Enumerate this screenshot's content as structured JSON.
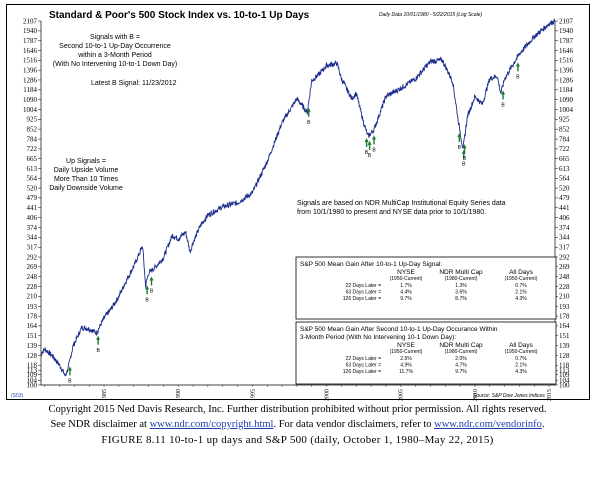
{
  "title": "Standard & Poor's 500 Stock Index vs. 10-to-1 Up Days",
  "subtitle": "Daily Data 10/01/1980 - 5/22/2015 (Log Scale)",
  "annotation_b": "Signals with B =\nSecond 10-to-1 Up-Day Occurrence\nwithin a 3-Month Period\n(With No Intervening 10-to-1 Down Day)",
  "latest_signal": "Latest B Signal: 11/23/2012",
  "annotation_up": "Up Signals =\nDaily Upside Volume\nMore Than 10 Times\nDaily Downside Volume",
  "annotation_ndr": "Signals are based on NDR MultiCap Institutional Equity Series data\nfrom 10/1/1980 to present and NYSE data prior to 10/1/1980.",
  "chart_id": "(S53)",
  "source": "Source: S&P Dow Jones Indices",
  "chart_data": {
    "type": "line",
    "title": "Standard & Poor's 500 Stock Index vs. 10-to-1 Up Days",
    "y_scale": "log",
    "yticks": [
      100,
      104,
      109,
      113,
      118,
      128,
      139,
      151,
      164,
      178,
      193,
      210,
      228,
      248,
      269,
      292,
      317,
      344,
      374,
      406,
      441,
      479,
      520,
      564,
      613,
      665,
      722,
      784,
      852,
      925,
      1004,
      1090,
      1184,
      1286,
      1396,
      1516,
      1646,
      1787,
      1940,
      2107
    ],
    "xticks": [
      "1985",
      "1990",
      "1995",
      "2000",
      "2005",
      "2010",
      "2015"
    ],
    "xlim": [
      1980.75,
      2015.4
    ],
    "ylim": [
      100,
      2107
    ],
    "series": [
      {
        "x": [
          1980.75,
          1981.0,
          1981.5,
          1982.0,
          1982.4,
          1982.6,
          1982.9,
          1983.5,
          1984.0,
          1984.5,
          1985.0,
          1985.5,
          1986.0,
          1986.5,
          1987.0,
          1987.6,
          1987.8,
          1988.0,
          1988.5,
          1989.0,
          1989.6,
          1990.0,
          1990.5,
          1990.8,
          1991.0,
          1991.5,
          1992.0,
          1993.0,
          1994.0,
          1995.0,
          1996.0,
          1997.0,
          1998.0,
          1998.7,
          1999.0,
          1999.5,
          2000.0,
          2000.7,
          2001.0,
          2001.7,
          2002.0,
          2002.5,
          2002.8,
          2003.2,
          2004.0,
          2005.0,
          2006.0,
          2007.0,
          2007.8,
          2008.5,
          2008.9,
          2009.2,
          2009.5,
          2010.0,
          2010.5,
          2011.0,
          2011.5,
          2011.75,
          2012.0,
          2013.0,
          2014.0,
          2014.5,
          2015.0,
          2015.4
        ],
        "y": [
          130,
          135,
          128,
          118,
          108,
          116,
          138,
          162,
          160,
          155,
          175,
          190,
          210,
          240,
          270,
          320,
          230,
          255,
          270,
          290,
          350,
          340,
          360,
          305,
          330,
          380,
          415,
          445,
          460,
          500,
          650,
          900,
          1100,
          980,
          1280,
          1350,
          1450,
          1480,
          1300,
          1100,
          1150,
          900,
          800,
          850,
          1120,
          1200,
          1300,
          1500,
          1520,
          1270,
          900,
          720,
          950,
          1120,
          1050,
          1300,
          1330,
          1150,
          1300,
          1600,
          1850,
          1950,
          2060,
          2107
        ]
      }
    ],
    "signal_b_dates": [
      1982.7,
      1984.6,
      1987.9,
      1988.2,
      1998.8,
      2002.7,
      2002.9,
      2003.2,
      2008.95,
      2009.25,
      2009.3,
      2011.9,
      2012.9
    ],
    "tables": [
      {
        "title": "S&P 500 Mean Gain After 10-to-1 Up-Day Signal:",
        "columns": [
          "NYSE",
          "NDR Multi Cap",
          "All Days"
        ],
        "column_notes": [
          "(1950-Current)",
          "(1980-Current)",
          "(1950-Current)"
        ],
        "rows": [
          {
            "label": "22 Days Later =",
            "values": [
              "1.7%",
              "1.3%",
              "0.7%"
            ]
          },
          {
            "label": "63 Days Later =",
            "values": [
              "4.4%",
              "3.6%",
              "2.1%"
            ]
          },
          {
            "label": "126 Days Later =",
            "values": [
              "9.7%",
              "8.7%",
              "4.3%"
            ]
          }
        ]
      },
      {
        "title": "S&P 500 Mean Gain After Second 10-to-1 Up-Day Occurance Within\n3-Month Period (With No Intervening 10-1 Down Day):",
        "columns": [
          "NYSE",
          "NDR Multi Cap",
          "All Days"
        ],
        "column_notes": [
          "(1950-Current)",
          "(1980-Current)",
          "(1950-Current)"
        ],
        "rows": [
          {
            "label": "22 Days Later =",
            "values": [
              "2.5%",
              "2.0%",
              "0.7%"
            ]
          },
          {
            "label": "63 Days Later =",
            "values": [
              "4.9%",
              "4.7%",
              "2.1%"
            ]
          },
          {
            "label": "126 Days Later =",
            "values": [
              "11.7%",
              "9.7%",
              "4.3%"
            ]
          }
        ]
      }
    ]
  },
  "caption": {
    "line1": "Copyright 2015 Ned Davis Research, Inc. Further distribution prohibited without prior permission. All rights reserved.",
    "line2_prefix": "See NDR disclaimer at ",
    "line2_link1": "www.ndr.com/copyright.html",
    "line2_mid": ". For data vendor disclaimers, refer to ",
    "line2_link2": "www.ndr.com/vendorinfo",
    "line2_suffix": ".",
    "figure": "FIGURE 8.11 10-to-1 up days and S&P 500 (daily, October 1, 1980–May 22, 2015)"
  }
}
